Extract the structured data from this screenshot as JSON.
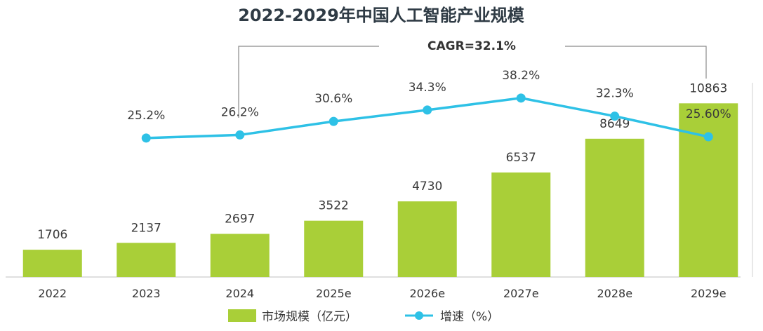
{
  "chart_data": {
    "type": "bar",
    "title": "2022-2029年中国人工智能产业规模",
    "annotation": "CAGR=32.1%",
    "categories": [
      "2022",
      "2023",
      "2024",
      "2025e",
      "2026e",
      "2027e",
      "2028e",
      "2029e"
    ],
    "series": [
      {
        "name": "市场规模（亿元）",
        "kind": "bar",
        "color": "#a9cf38",
        "values": [
          1706,
          2137,
          2697,
          3522,
          4730,
          6537,
          8649,
          10863
        ],
        "labels": [
          "1706",
          "2137",
          "2697",
          "3522",
          "4730",
          "6537",
          "8649",
          "10863"
        ]
      },
      {
        "name": "增速（%）",
        "kind": "line",
        "color": "#2ec1e6",
        "values": [
          null,
          25.2,
          26.2,
          30.6,
          34.3,
          38.2,
          32.3,
          25.6
        ],
        "labels": [
          null,
          "25.2%",
          "26.2%",
          "30.6%",
          "34.3%",
          "38.2%",
          "32.3%",
          "25.60%"
        ]
      }
    ],
    "bar_ylim": [
      0,
      12500
    ],
    "line_ylim": [
      -20,
      45
    ],
    "xlabel": "",
    "ylabel": ""
  }
}
